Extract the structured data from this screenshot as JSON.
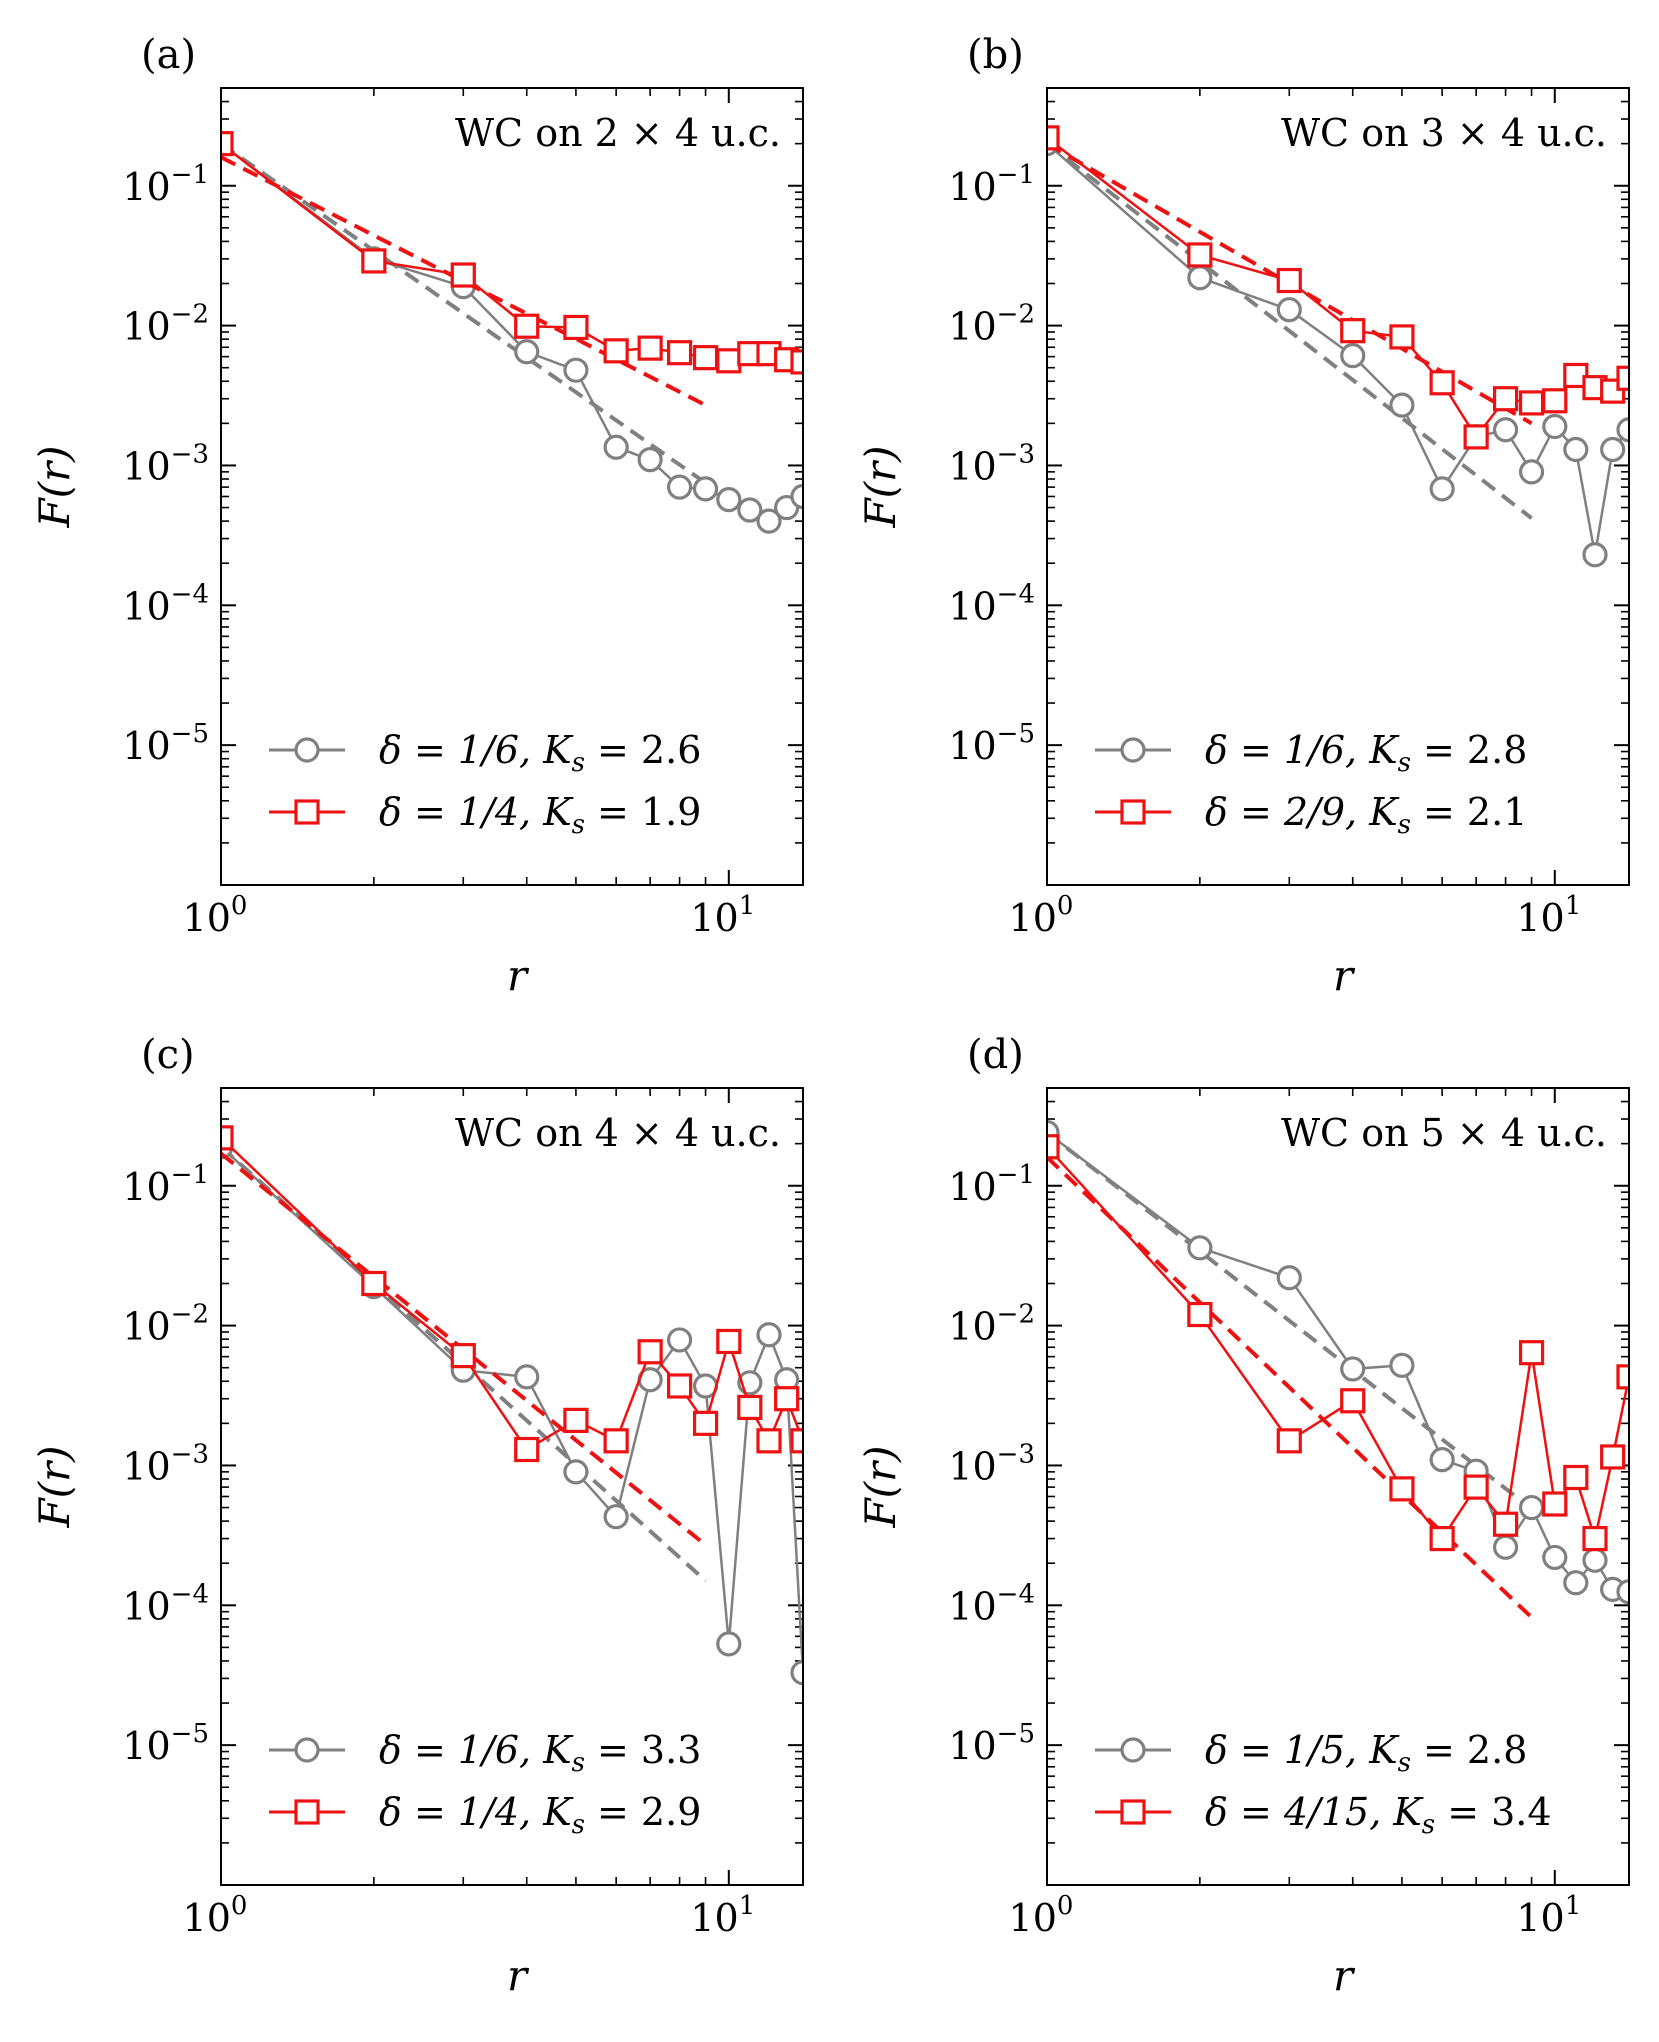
{
  "colors": {
    "series1": "#808080",
    "series2": "#ee1111",
    "axis": "#000000"
  },
  "chart_data": [
    {
      "type": "line",
      "panel_label": "(a)",
      "title": "WC on 2 × 4 u.c.",
      "xlabel": "r",
      "ylabel": "F(r)",
      "xscale": "log",
      "yscale": "log",
      "xlim": [
        1,
        14
      ],
      "ylim": [
        1e-06,
        0.5
      ],
      "x_ticks": [
        {
          "base": "10",
          "exp": "0",
          "value": 1
        },
        {
          "base": "10",
          "exp": "1",
          "value": 10
        }
      ],
      "y_ticks": [
        {
          "base": "10",
          "exp": "−1",
          "value": 0.1
        },
        {
          "base": "10",
          "exp": "−2",
          "value": 0.01
        },
        {
          "base": "10",
          "exp": "−3",
          "value": 0.001
        },
        {
          "base": "10",
          "exp": "−4",
          "value": 0.0001
        },
        {
          "base": "10",
          "exp": "−5",
          "value": 1e-05
        }
      ],
      "series": [
        {
          "name": "δ = 1/6, K_s = 2.6",
          "legend_main": "δ = 1/6, K",
          "legend_sub": "s",
          "legend_tail": " = 2.6",
          "marker": "circle",
          "color": "#808080",
          "x": [
            1,
            2,
            3,
            4,
            5,
            6,
            7,
            8,
            9,
            10,
            11,
            12,
            13,
            14
          ],
          "y": [
            0.2,
            0.03,
            0.019,
            0.0065,
            0.0048,
            0.00135,
            0.0011,
            0.0007,
            0.00068,
            0.00057,
            0.00048,
            0.0004,
            0.0005,
            0.0006
          ],
          "fit": {
            "x": [
              1,
              9
            ],
            "y": [
              0.2,
              0.00075
            ]
          }
        },
        {
          "name": "δ = 1/4, K_s = 1.9",
          "legend_main": "δ = 1/4, K",
          "legend_sub": "s",
          "legend_tail": " = 1.9",
          "marker": "square",
          "color": "#ee1111",
          "x": [
            1,
            2,
            3,
            4,
            5,
            6,
            7,
            8,
            9,
            10,
            11,
            12,
            13,
            14
          ],
          "y": [
            0.2,
            0.029,
            0.023,
            0.0099,
            0.0097,
            0.0066,
            0.0069,
            0.0064,
            0.0059,
            0.0056,
            0.0063,
            0.0063,
            0.0057,
            0.0055
          ],
          "fit": {
            "x": [
              1,
              9
            ],
            "y": [
              0.16,
              0.0027
            ]
          }
        }
      ]
    },
    {
      "type": "line",
      "panel_label": "(b)",
      "title": "WC on 3 × 4 u.c.",
      "xlabel": "r",
      "ylabel": "F(r)",
      "xscale": "log",
      "yscale": "log",
      "xlim": [
        1,
        14
      ],
      "ylim": [
        1e-06,
        0.5
      ],
      "x_ticks": [
        {
          "base": "10",
          "exp": "0",
          "value": 1
        },
        {
          "base": "10",
          "exp": "1",
          "value": 10
        }
      ],
      "y_ticks": [
        {
          "base": "10",
          "exp": "−1",
          "value": 0.1
        },
        {
          "base": "10",
          "exp": "−2",
          "value": 0.01
        },
        {
          "base": "10",
          "exp": "−3",
          "value": 0.001
        },
        {
          "base": "10",
          "exp": "−4",
          "value": 0.0001
        },
        {
          "base": "10",
          "exp": "−5",
          "value": 1e-05
        }
      ],
      "series": [
        {
          "name": "δ = 1/6, K_s = 2.8",
          "legend_main": "δ = 1/6, K",
          "legend_sub": "s",
          "legend_tail": " = 2.8",
          "marker": "circle",
          "color": "#808080",
          "x": [
            1,
            2,
            3,
            4,
            5,
            6,
            7,
            8,
            9,
            10,
            11,
            12,
            13,
            14
          ],
          "y": [
            0.2,
            0.022,
            0.013,
            0.0061,
            0.0027,
            0.00068,
            0.0016,
            0.0018,
            0.0009,
            0.0019,
            0.0013,
            0.00023,
            0.0013,
            0.0018
          ],
          "fit": {
            "x": [
              1,
              9
            ],
            "y": [
              0.2,
              0.00042
            ]
          }
        },
        {
          "name": "δ = 2/9, K_s = 2.1",
          "legend_main": "δ = 2/9, K",
          "legend_sub": "s",
          "legend_tail": " = 2.1",
          "marker": "square",
          "color": "#ee1111",
          "x": [
            1,
            2,
            3,
            4,
            5,
            6,
            7,
            8,
            9,
            10,
            11,
            12,
            13,
            14
          ],
          "y": [
            0.22,
            0.032,
            0.021,
            0.0092,
            0.0083,
            0.0039,
            0.0016,
            0.003,
            0.0028,
            0.0029,
            0.0044,
            0.0036,
            0.0034,
            0.0042
          ],
          "fit": {
            "x": [
              1,
              9
            ],
            "y": [
              0.2,
              0.002
            ]
          }
        }
      ]
    },
    {
      "type": "line",
      "panel_label": "(c)",
      "title": "WC on 4 × 4 u.c.",
      "xlabel": "r",
      "ylabel": "F(r)",
      "xscale": "log",
      "yscale": "log",
      "xlim": [
        1,
        14
      ],
      "ylim": [
        1e-06,
        0.5
      ],
      "x_ticks": [
        {
          "base": "10",
          "exp": "0",
          "value": 1
        },
        {
          "base": "10",
          "exp": "1",
          "value": 10
        }
      ],
      "y_ticks": [
        {
          "base": "10",
          "exp": "−1",
          "value": 0.1
        },
        {
          "base": "10",
          "exp": "−2",
          "value": 0.01
        },
        {
          "base": "10",
          "exp": "−3",
          "value": 0.001
        },
        {
          "base": "10",
          "exp": "−4",
          "value": 0.0001
        },
        {
          "base": "10",
          "exp": "−5",
          "value": 1e-05
        }
      ],
      "series": [
        {
          "name": "δ = 1/6, K_s = 3.3",
          "legend_main": "δ = 1/6, K",
          "legend_sub": "s",
          "legend_tail": " = 3.3",
          "marker": "circle",
          "color": "#808080",
          "x": [
            1,
            2,
            3,
            4,
            5,
            6,
            7,
            8,
            9,
            10,
            11,
            12,
            13,
            14
          ],
          "y": [
            0.19,
            0.019,
            0.0048,
            0.0043,
            0.0009,
            0.00043,
            0.0041,
            0.0079,
            0.0037,
            5.3e-05,
            0.0039,
            0.0086,
            0.0041,
            3.3e-05
          ],
          "fit": {
            "x": [
              1,
              9
            ],
            "y": [
              0.19,
              0.00015
            ]
          }
        },
        {
          "name": "δ = 1/4, K_s = 2.9",
          "legend_main": "δ = 1/4, K",
          "legend_sub": "s",
          "legend_tail": " = 2.9",
          "marker": "square",
          "color": "#ee1111",
          "x": [
            1,
            2,
            3,
            4,
            5,
            6,
            7,
            8,
            9,
            10,
            11,
            12,
            13,
            14
          ],
          "y": [
            0.22,
            0.02,
            0.0061,
            0.0013,
            0.0021,
            0.0015,
            0.0065,
            0.0037,
            0.002,
            0.0077,
            0.0026,
            0.0015,
            0.003,
            0.0015
          ],
          "fit": {
            "x": [
              1,
              9
            ],
            "y": [
              0.17,
              0.00027
            ]
          }
        }
      ]
    },
    {
      "type": "line",
      "panel_label": "(d)",
      "title": "WC on 5 × 4 u.c.",
      "xlabel": "r",
      "ylabel": "F(r)",
      "xscale": "log",
      "yscale": "log",
      "xlim": [
        1,
        14
      ],
      "ylim": [
        1e-06,
        0.5
      ],
      "x_ticks": [
        {
          "base": "10",
          "exp": "0",
          "value": 1
        },
        {
          "base": "10",
          "exp": "1",
          "value": 10
        }
      ],
      "y_ticks": [
        {
          "base": "10",
          "exp": "−1",
          "value": 0.1
        },
        {
          "base": "10",
          "exp": "−2",
          "value": 0.01
        },
        {
          "base": "10",
          "exp": "−3",
          "value": 0.001
        },
        {
          "base": "10",
          "exp": "−4",
          "value": 0.0001
        },
        {
          "base": "10",
          "exp": "−5",
          "value": 1e-05
        }
      ],
      "series": [
        {
          "name": "δ = 1/5, K_s = 2.8",
          "legend_main": "δ = 1/5, K",
          "legend_sub": "s",
          "legend_tail": " = 2.8",
          "marker": "circle",
          "color": "#808080",
          "x": [
            1,
            2,
            3,
            4,
            5,
            6,
            7,
            8,
            9,
            10,
            11,
            12,
            13,
            14
          ],
          "y": [
            0.24,
            0.036,
            0.022,
            0.0049,
            0.0052,
            0.0011,
            0.00091,
            0.00026,
            0.0005,
            0.00022,
            0.000145,
            0.00021,
            0.00013,
            0.000125
          ],
          "fit": {
            "x": [
              1,
              9
            ],
            "y": [
              0.24,
              0.00049
            ]
          }
        },
        {
          "name": "δ = 4/15, K_s = 3.4",
          "legend_main": "δ = 4/15, K",
          "legend_sub": "s",
          "legend_tail": " = 3.4",
          "marker": "square",
          "color": "#ee1111",
          "x": [
            1,
            2,
            3,
            4,
            5,
            6,
            7,
            8,
            9,
            10,
            11,
            12,
            13,
            14
          ],
          "y": [
            0.19,
            0.012,
            0.0015,
            0.0029,
            0.00068,
            0.0003,
            0.0007,
            0.00038,
            0.0064,
            0.00053,
            0.00082,
            0.0003,
            0.00115,
            0.0043
          ],
          "fit": {
            "x": [
              1,
              9
            ],
            "y": [
              0.16,
              8.2e-05
            ]
          }
        }
      ]
    }
  ]
}
